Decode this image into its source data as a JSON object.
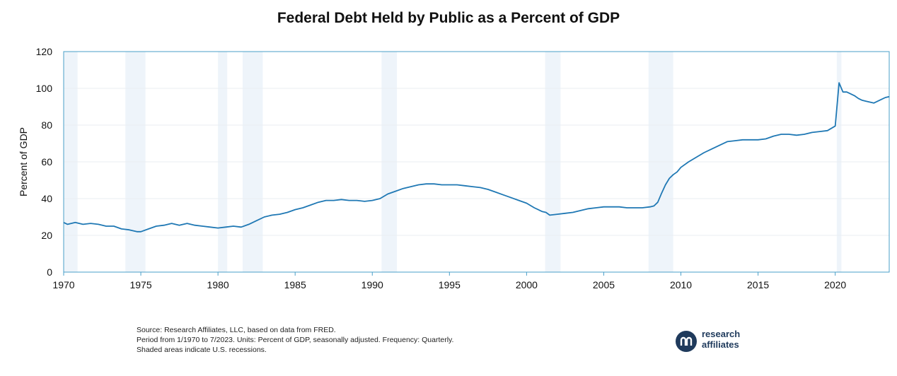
{
  "chart_data": {
    "type": "line",
    "title": "Federal Debt Held by Public as a Percent of GDP",
    "xlabel": "",
    "ylabel": "Percent of GDP",
    "xlim": [
      1970,
      2023.5
    ],
    "ylim": [
      0,
      120
    ],
    "xticks": [
      1970,
      1975,
      1980,
      1985,
      1990,
      1995,
      2000,
      2005,
      2010,
      2015,
      2020
    ],
    "yticks": [
      0,
      20,
      40,
      60,
      80,
      100,
      120
    ],
    "grid": true,
    "legend": "none",
    "series_color": "#1f78b4",
    "recession_color": "#eef4fa",
    "recessions": [
      [
        1970.0,
        1970.9
      ],
      [
        1974.0,
        1975.3
      ],
      [
        1980.0,
        1980.6
      ],
      [
        1981.6,
        1982.9
      ],
      [
        1990.6,
        1991.6
      ],
      [
        2001.2,
        2002.2
      ],
      [
        2007.9,
        2009.5
      ],
      [
        2020.1,
        2020.4
      ]
    ],
    "series": [
      {
        "x": [
          1970.0,
          1970.25,
          1970.75,
          1971.25,
          1971.75,
          1972.25,
          1972.75,
          1973.25,
          1973.75,
          1974.25,
          1974.75,
          1975.0,
          1975.5,
          1976.0,
          1976.5,
          1977.0,
          1977.5,
          1978.0,
          1978.5,
          1979.0,
          1979.5,
          1980.0,
          1980.5,
          1981.0,
          1981.5,
          1982.0,
          1982.5,
          1983.0,
          1983.5,
          1984.0,
          1984.5,
          1985.0,
          1985.5,
          1986.0,
          1986.5,
          1987.0,
          1987.5,
          1988.0,
          1988.5,
          1989.0,
          1989.5,
          1990.0,
          1990.5,
          1991.0,
          1991.5,
          1992.0,
          1992.5,
          1993.0,
          1993.5,
          1994.0,
          1994.5,
          1995.0,
          1995.5,
          1996.0,
          1996.5,
          1997.0,
          1997.5,
          1998.0,
          1998.5,
          1999.0,
          1999.5,
          2000.0,
          2000.5,
          2001.0,
          2001.25,
          2001.5,
          2002.0,
          2002.5,
          2003.0,
          2003.5,
          2004.0,
          2004.5,
          2005.0,
          2005.5,
          2006.0,
          2006.5,
          2007.0,
          2007.5,
          2008.0,
          2008.25,
          2008.5,
          2008.75,
          2009.0,
          2009.25,
          2009.5,
          2009.75,
          2010.0,
          2010.5,
          2011.0,
          2011.5,
          2012.0,
          2012.5,
          2013.0,
          2013.5,
          2014.0,
          2014.5,
          2015.0,
          2015.5,
          2016.0,
          2016.5,
          2017.0,
          2017.5,
          2018.0,
          2018.5,
          2019.0,
          2019.5,
          2020.0,
          2020.25,
          2020.5,
          2020.75,
          2021.0,
          2021.25,
          2021.5,
          2021.75,
          2022.0,
          2022.5,
          2023.0,
          2023.25,
          2023.5
        ],
        "y": [
          27,
          26,
          27,
          26,
          26.5,
          26,
          25,
          25,
          23.5,
          23,
          22,
          22,
          23.5,
          25,
          25.5,
          26.5,
          25.5,
          26.5,
          25.5,
          25,
          24.5,
          24,
          24.5,
          25,
          24.5,
          26,
          28,
          30,
          31,
          31.5,
          32.5,
          34,
          35,
          36.5,
          38,
          39,
          39,
          39.5,
          39,
          39,
          38.5,
          39,
          40,
          42.5,
          44,
          45.5,
          46.5,
          47.5,
          48,
          48,
          47.5,
          47.5,
          47.5,
          47,
          46.5,
          46,
          45,
          43.5,
          42,
          40.5,
          39,
          37.5,
          35,
          33,
          32.5,
          31,
          31.5,
          32,
          32.5,
          33.5,
          34.5,
          35,
          35.5,
          35.5,
          35.5,
          35,
          35,
          35,
          35.5,
          36,
          38,
          43,
          47.5,
          51,
          53,
          54.5,
          57,
          60,
          62.5,
          65,
          67,
          69,
          71,
          71.5,
          72,
          72,
          72,
          72.5,
          74,
          75,
          75,
          74.5,
          75,
          76,
          76.5,
          77,
          79.5,
          103,
          98,
          98,
          97,
          96,
          94.5,
          93.5,
          93,
          92,
          94,
          95,
          95.5
        ]
      }
    ]
  },
  "notes": {
    "line1": "Source: Research Affiliates, LLC, based on data from FRED.",
    "line2": "Period from 1/1970 to 7/2023.  Units: Percent of GDP, seasonally adjusted. Frequency: Quarterly.",
    "line3": "Shaded areas indicate U.S. recessions."
  },
  "logo": {
    "word1": "research",
    "word2": "affiliates",
    "icon": "research-affiliates-logo-icon"
  }
}
